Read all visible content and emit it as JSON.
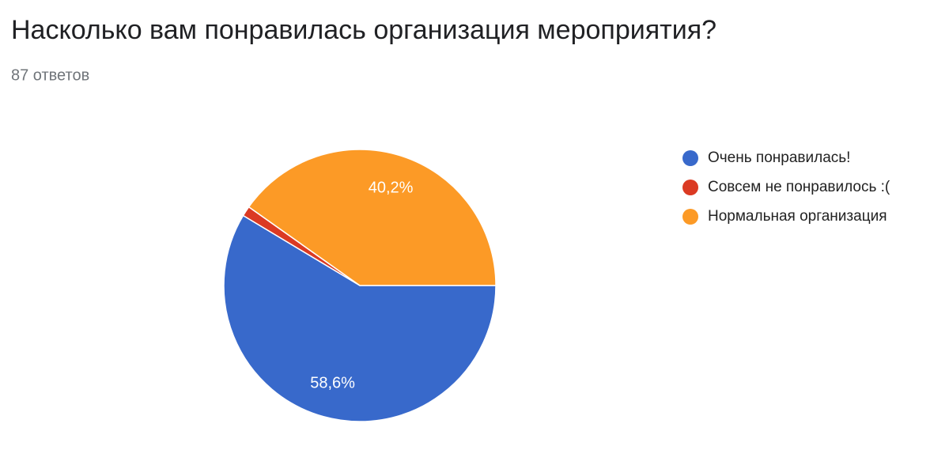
{
  "chart_data": {
    "type": "pie",
    "title": "Насколько вам понравилась организация мероприятия?",
    "subtitle": "87 ответов",
    "categories": [
      "Очень понравилась!",
      "Совсем не понравилось :(",
      "Нормальная организация"
    ],
    "values": [
      58.6,
      1.2,
      40.2
    ],
    "value_labels": [
      "58,6%",
      null,
      "40,2%"
    ],
    "colors": [
      "#3869cb",
      "#db3a23",
      "#fc9a26"
    ],
    "legend": "right"
  }
}
